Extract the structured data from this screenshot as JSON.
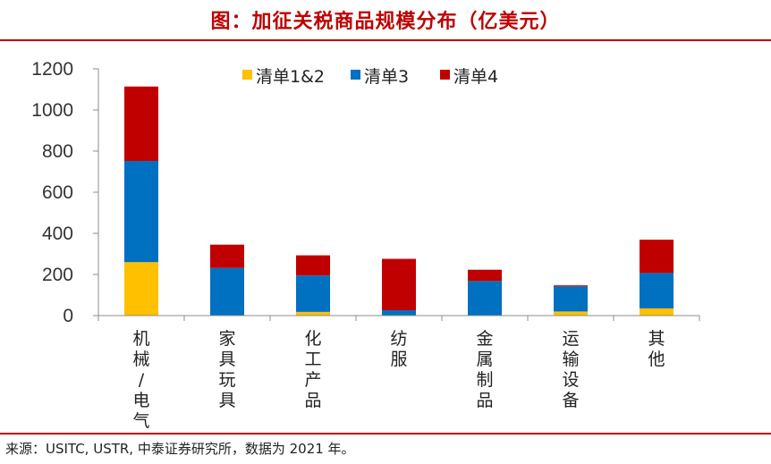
{
  "header": {
    "title": "图：加征关税商品规模分布（亿美元）"
  },
  "footer": {
    "source": "来源：USITC, USTR, 中泰证券研究所，数据为 2021 年。"
  },
  "chart_data": {
    "type": "bar",
    "stacked": true,
    "title": "图：加征关税商品规模分布（亿美元）",
    "ylabel": "",
    "xlabel": "",
    "ylim": [
      0,
      1200
    ],
    "yticks": [
      0,
      200,
      400,
      600,
      800,
      1000,
      1200
    ],
    "legend_position": "top",
    "categories": [
      [
        "机",
        "械",
        "/",
        "电",
        "气"
      ],
      [
        "家",
        "具",
        "玩",
        "具"
      ],
      [
        "化",
        "工",
        "产",
        "品"
      ],
      [
        "纺",
        "服"
      ],
      [
        "金",
        "属",
        "制",
        "品"
      ],
      [
        "运",
        "输",
        "设",
        "备"
      ],
      [
        "其",
        "他"
      ]
    ],
    "series": [
      {
        "name": "清单1&2",
        "color": "#ffc000",
        "values": [
          260,
          0,
          18,
          0,
          0,
          20,
          35
        ]
      },
      {
        "name": "清单3",
        "color": "#0070c0",
        "values": [
          492,
          232,
          177,
          26,
          168,
          122,
          172
        ]
      },
      {
        "name": "清单4",
        "color": "#c00000",
        "values": [
          362,
          113,
          98,
          250,
          55,
          5,
          162
        ]
      }
    ]
  }
}
